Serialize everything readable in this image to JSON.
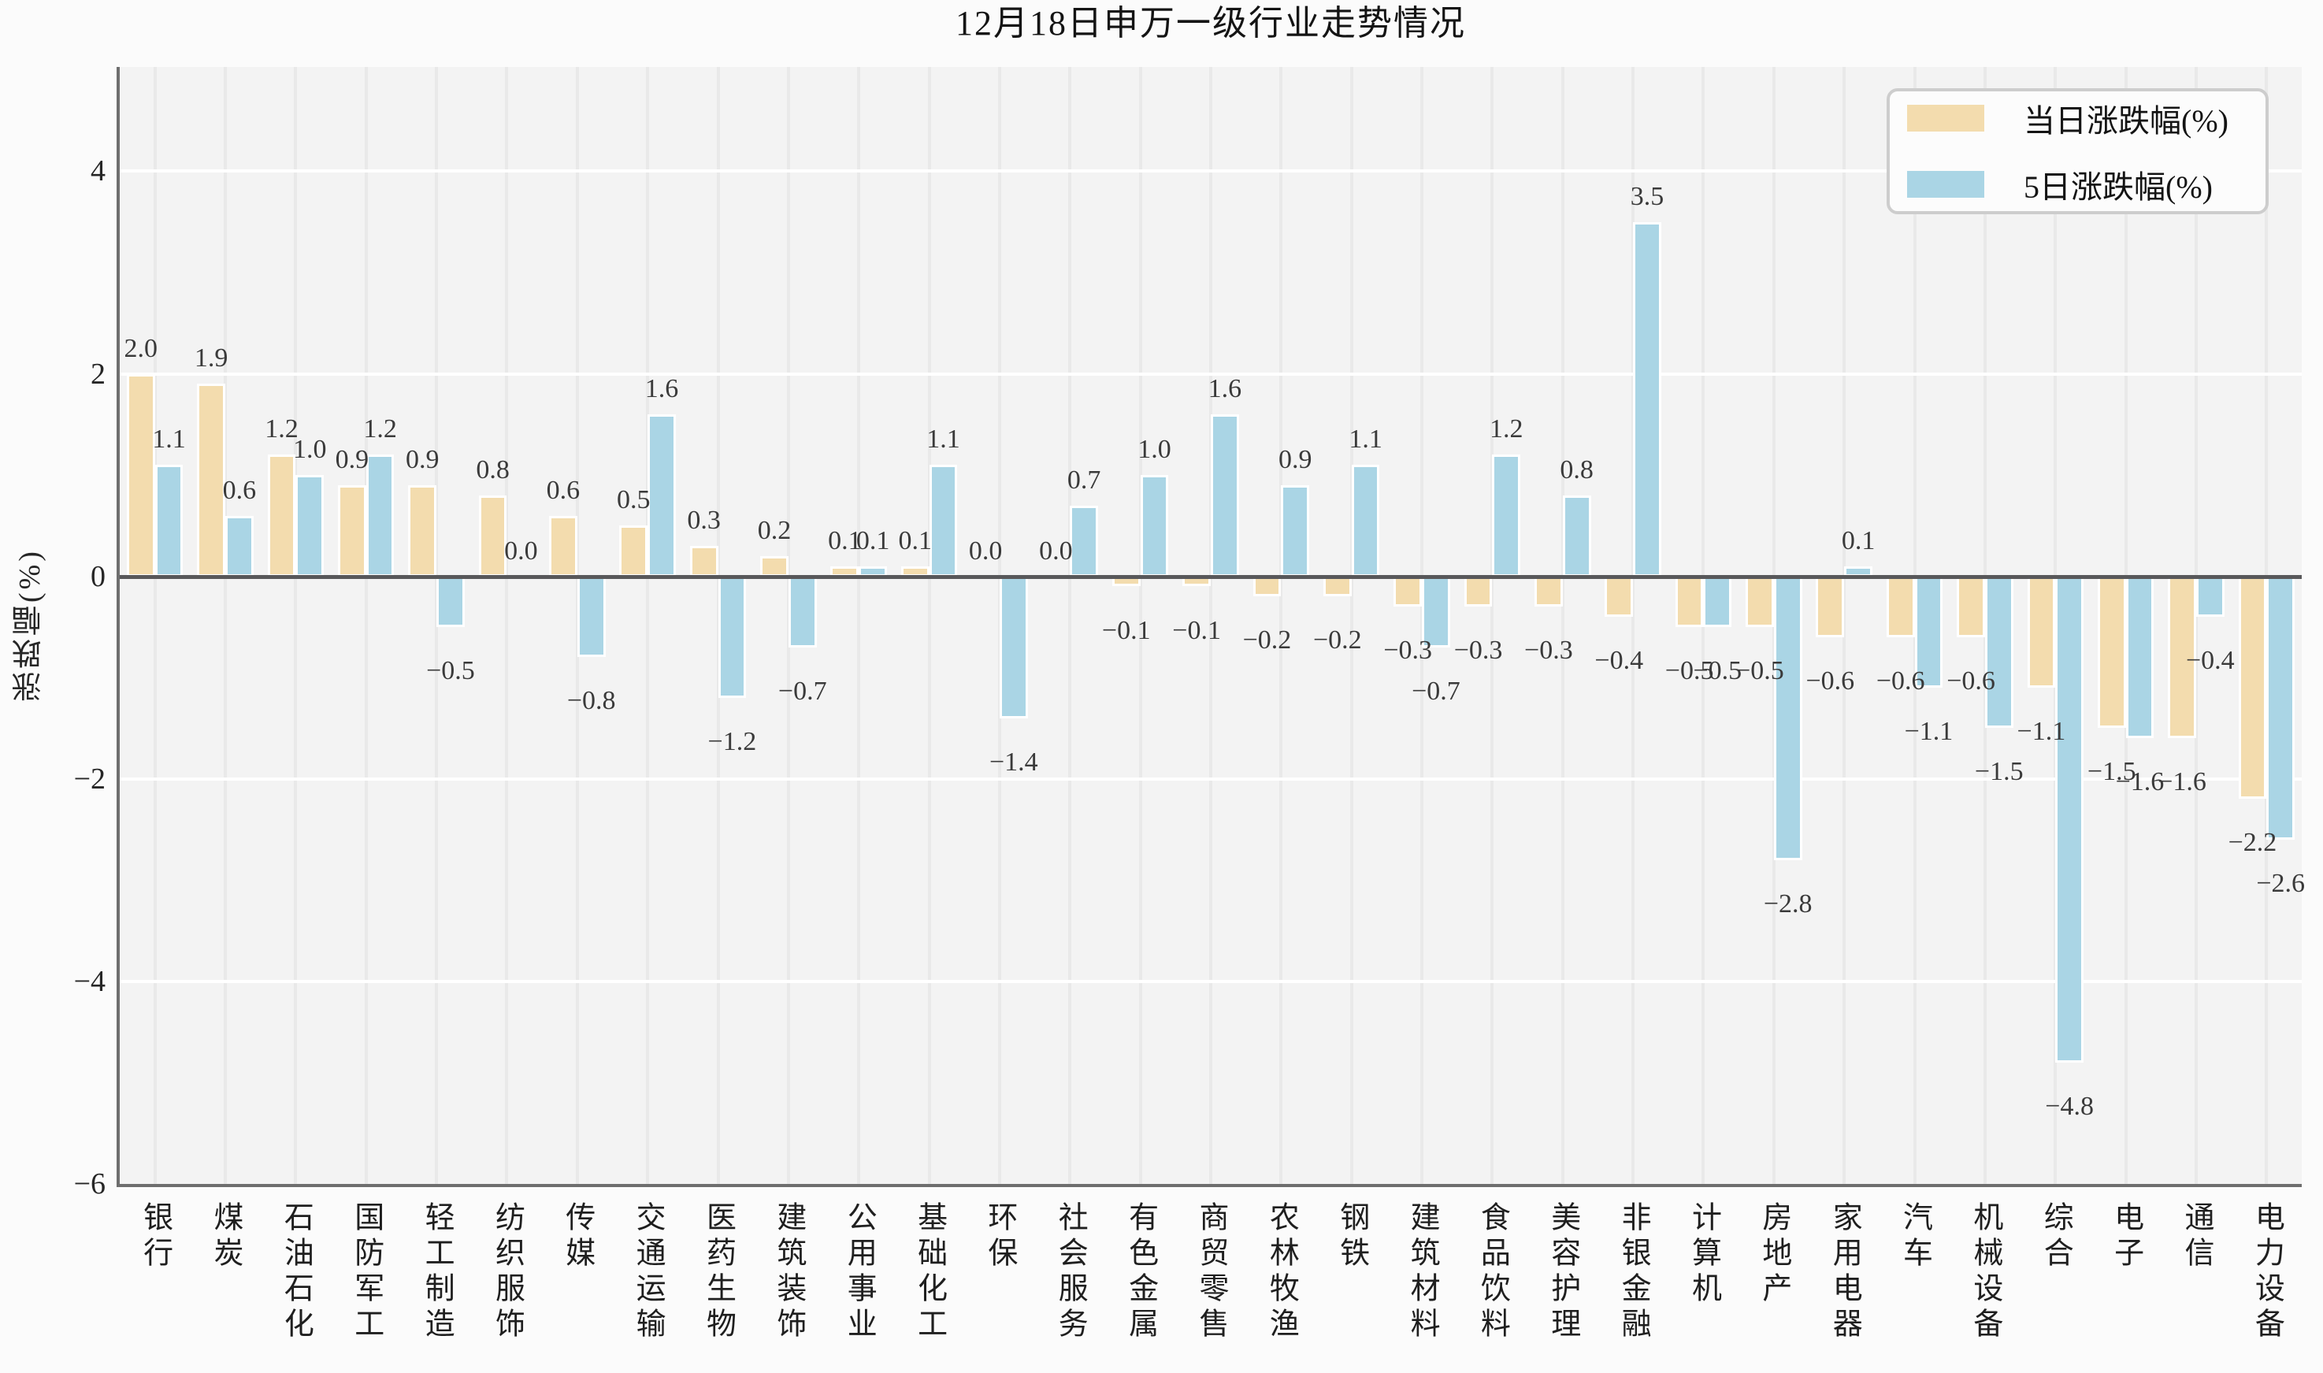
{
  "chart_data": {
    "type": "bar",
    "title": "12月18日申万一级行业走势情况",
    "ylabel": "涨跌幅(%)",
    "ylim": [
      -6.0,
      5.03
    ],
    "yticks": [
      4,
      2,
      0,
      -2,
      -4,
      -6
    ],
    "grid": true,
    "legend_position": "upper right",
    "value_labels": true,
    "categories": [
      "银行",
      "煤炭",
      "石油石化",
      "国防军工",
      "轻工制造",
      "纺织服饰",
      "传媒",
      "交通运输",
      "医药生物",
      "建筑装饰",
      "公用事业",
      "基础化工",
      "环保",
      "社会服务",
      "有色金属",
      "商贸零售",
      "农林牧渔",
      "钢铁",
      "建筑材料",
      "食品饮料",
      "美容护理",
      "非银金融",
      "计算机",
      "房地产",
      "家用电器",
      "汽车",
      "机械设备",
      "综合",
      "电子",
      "通信",
      "电力设备"
    ],
    "series": [
      {
        "name": "当日涨跌幅(%)",
        "color": "#F3DCAE",
        "values": [
          2.0,
          1.9,
          1.2,
          0.9,
          0.9,
          0.8,
          0.6,
          0.5,
          0.3,
          0.2,
          0.1,
          0.1,
          0.0,
          0.0,
          -0.1,
          -0.1,
          -0.2,
          -0.2,
          -0.3,
          -0.3,
          -0.3,
          -0.4,
          -0.5,
          -0.5,
          -0.6,
          -0.6,
          -0.6,
          -1.1,
          -1.5,
          -1.6,
          -2.2
        ]
      },
      {
        "name": "5日涨跌幅(%)",
        "color": "#AAD5E5",
        "values": [
          1.1,
          0.6,
          1.0,
          1.2,
          -0.5,
          0.0,
          -0.8,
          1.6,
          -1.2,
          -0.7,
          0.1,
          1.1,
          -1.4,
          0.7,
          1.0,
          1.6,
          0.9,
          1.1,
          -0.7,
          1.2,
          0.8,
          3.5,
          -0.5,
          -2.8,
          0.1,
          -1.1,
          -1.5,
          -4.8,
          -1.6,
          -0.4,
          -2.6
        ]
      }
    ]
  },
  "style": {
    "figure_background": "#FBFBFB",
    "plot_background": "#F3F3F3",
    "horizontal_gridline_color": "#FFFFFF",
    "vertical_gridline_color": "#E9E9E9",
    "zero_line_color": "#58585A",
    "spine_color": "#6E6E6E",
    "legend_border_color": "#CDCDCD",
    "text_color": "#262626"
  }
}
